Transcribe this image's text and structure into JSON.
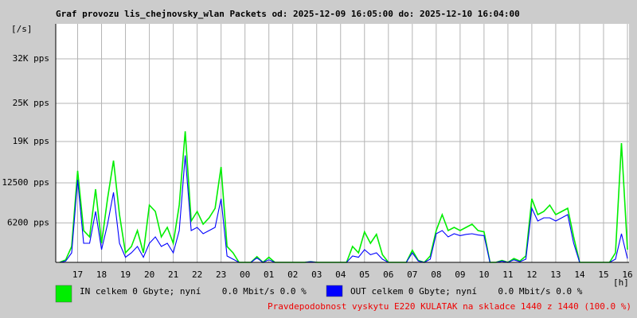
{
  "chart_data": {
    "type": "line",
    "title": "Graf provozu lis_chejnovsky_wlan Packets od: 2025-12-09 16:05:00 do: 2025-12-10 16:04:00",
    "y_label": "[/s]",
    "x_label": "[h]",
    "note": "Pravdepodobnost vyskytu E220 KULATAK na skladce 1440 z 1440 (100.0 %)",
    "xlim": [
      16.0833,
      40.0667
    ],
    "xticks": [
      17,
      18,
      19,
      20,
      21,
      22,
      23,
      {
        "value": 24,
        "label": "00"
      },
      {
        "value": 25,
        "label": "01"
      },
      {
        "value": 26,
        "label": "02"
      },
      {
        "value": 27,
        "label": "03"
      },
      {
        "value": 28,
        "label": "04"
      },
      {
        "value": 29,
        "label": "05"
      },
      {
        "value": 30,
        "label": "06"
      },
      {
        "value": 31,
        "label": "07"
      },
      {
        "value": 32,
        "label": "08"
      },
      {
        "value": 33,
        "label": "09"
      },
      {
        "value": 34,
        "label": "10"
      },
      {
        "value": 35,
        "label": "11"
      },
      {
        "value": 36,
        "label": "12"
      },
      {
        "value": 37,
        "label": "13"
      },
      {
        "value": 38,
        "label": "14"
      },
      {
        "value": 39,
        "label": "15"
      },
      {
        "value": 40,
        "label": "16"
      }
    ],
    "ylim": [
      0,
      37500
    ],
    "yticks": [
      {
        "value": 6200,
        "label": "6200 pps"
      },
      {
        "value": 12500,
        "label": "12500 pps"
      },
      {
        "value": 19000,
        "label": "19K pps"
      },
      {
        "value": 25000,
        "label": "25K pps"
      },
      {
        "value": 32000,
        "label": "32K pps"
      }
    ],
    "grid": true,
    "x": [
      16.25,
      16.5,
      16.75,
      17,
      17.25,
      17.5,
      17.75,
      18,
      18.25,
      18.5,
      18.75,
      19,
      19.25,
      19.5,
      19.75,
      20,
      20.25,
      20.5,
      20.75,
      21,
      21.25,
      21.5,
      21.75,
      22,
      22.25,
      22.5,
      22.75,
      23,
      23.25,
      23.5,
      23.75,
      24,
      24.25,
      24.5,
      24.75,
      25,
      25.25,
      25.5,
      25.75,
      26,
      26.25,
      26.5,
      26.75,
      27,
      27.25,
      27.5,
      27.75,
      28,
      28.25,
      28.5,
      28.75,
      29,
      29.25,
      29.5,
      29.75,
      30,
      30.25,
      30.5,
      30.75,
      31,
      31.25,
      31.5,
      31.75,
      32,
      32.25,
      32.5,
      32.75,
      33,
      33.25,
      33.5,
      33.75,
      34,
      34.25,
      34.5,
      34.75,
      35,
      35.25,
      35.5,
      35.75,
      36,
      36.25,
      36.5,
      36.75,
      37,
      37.25,
      37.5,
      37.75,
      38,
      38.25,
      38.5,
      38.75,
      39,
      39.25,
      39.5,
      39.75,
      40
    ],
    "series": [
      {
        "name": "IN celkem 0 Gbyte; nyní    0.0 Mbit/s 0.0 %",
        "color": "#00ee00",
        "values": [
          0,
          400,
          2500,
          14400,
          5000,
          4000,
          11500,
          3000,
          10000,
          16000,
          7500,
          1500,
          2500,
          5000,
          1500,
          9000,
          8000,
          4000,
          5500,
          3000,
          9000,
          20600,
          6500,
          8000,
          6000,
          7000,
          8500,
          15000,
          2500,
          1500,
          0,
          0,
          0,
          900,
          0,
          800,
          0,
          0,
          0,
          0,
          0,
          0,
          100,
          0,
          0,
          0,
          0,
          0,
          0,
          2500,
          1500,
          4800,
          3000,
          4400,
          1200,
          0,
          0,
          0,
          0,
          1900,
          300,
          0,
          1000,
          5000,
          7500,
          5000,
          5500,
          5000,
          5500,
          6000,
          5000,
          4800,
          0,
          0,
          300,
          0,
          600,
          200,
          1000,
          10000,
          7500,
          8000,
          9000,
          7500,
          8000,
          8500,
          4000,
          0,
          0,
          0,
          0,
          0,
          0,
          1500,
          18750,
          2000
        ]
      },
      {
        "name": "OUT celkem 0 Gbyte; nyní    0.0 Mbit/s 0.0 %",
        "color": "#0000ff",
        "values": [
          0,
          200,
          1500,
          13000,
          3000,
          3000,
          8000,
          2000,
          6000,
          11000,
          3000,
          800,
          1500,
          2500,
          800,
          3000,
          4000,
          2500,
          3000,
          1500,
          5000,
          16800,
          5000,
          5500,
          4500,
          5000,
          5500,
          10000,
          1000,
          500,
          0,
          0,
          0,
          700,
          0,
          400,
          0,
          0,
          0,
          0,
          0,
          0,
          100,
          0,
          0,
          0,
          0,
          0,
          0,
          1000,
          800,
          2000,
          1200,
          1500,
          500,
          0,
          0,
          0,
          0,
          1500,
          200,
          0,
          500,
          4500,
          5000,
          4000,
          4500,
          4200,
          4400,
          4500,
          4300,
          4200,
          0,
          0,
          200,
          0,
          400,
          100,
          500,
          8500,
          6500,
          7000,
          7000,
          6500,
          7000,
          7500,
          3000,
          0,
          0,
          0,
          0,
          0,
          0,
          500,
          4500,
          600
        ]
      }
    ]
  }
}
